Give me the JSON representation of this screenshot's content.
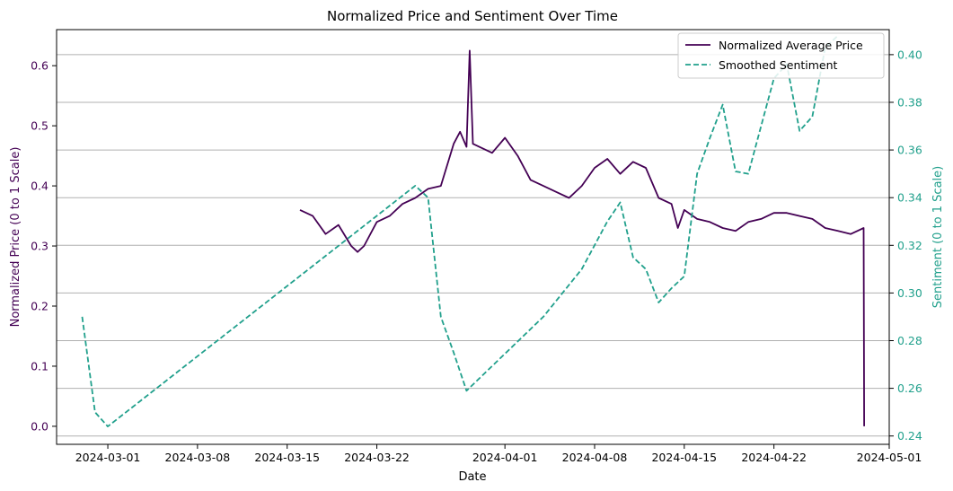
{
  "chart_data": {
    "type": "line",
    "title": "Normalized Price and Sentiment Over Time",
    "xlabel": "Date",
    "ylabel_left": "Normalized Price (0 to 1 Scale)",
    "ylabel_right": "Sentiment (0 to 1 Scale)",
    "x_ticks": [
      "2024-03-01",
      "2024-03-08",
      "2024-03-15",
      "2024-03-22",
      "2024-04-01",
      "2024-04-08",
      "2024-04-15",
      "2024-04-22",
      "2024-05-01"
    ],
    "y_left_ticks": [
      "0.0",
      "0.1",
      "0.2",
      "0.3",
      "0.4",
      "0.5",
      "0.6"
    ],
    "y_right_ticks": [
      "0.24",
      "0.26",
      "0.28",
      "0.30",
      "0.32",
      "0.34",
      "0.36",
      "0.38",
      "0.40"
    ],
    "ylim_left": [
      -0.03,
      0.66
    ],
    "ylim_right": [
      0.2365,
      0.4105
    ],
    "xlim": [
      "2024-02-26",
      "2024-05-01"
    ],
    "grid": "horizontal lines at right-axis ticks",
    "legend_position": "top-right",
    "colors": {
      "price": "#440154",
      "sentiment": "#21a08c",
      "grid": "#b0b0b0"
    },
    "series": [
      {
        "name": "Normalized Average Price",
        "axis": "left",
        "style": "solid",
        "x": [
          "2024-03-16",
          "2024-03-17",
          "2024-03-18",
          "2024-03-19",
          "2024-03-20",
          "2024-03-20T12:00",
          "2024-03-21",
          "2024-03-22",
          "2024-03-23",
          "2024-03-24",
          "2024-03-25",
          "2024-03-26",
          "2024-03-27",
          "2024-03-28",
          "2024-03-28T12:00",
          "2024-03-29",
          "2024-03-29T06:00",
          "2024-03-29T12:00",
          "2024-03-30",
          "2024-03-31",
          "2024-04-01",
          "2024-04-02",
          "2024-04-03",
          "2024-04-04",
          "2024-04-05",
          "2024-04-06",
          "2024-04-07",
          "2024-04-08",
          "2024-04-09",
          "2024-04-10",
          "2024-04-11",
          "2024-04-12",
          "2024-04-13",
          "2024-04-14",
          "2024-04-14T12:00",
          "2024-04-15",
          "2024-04-16",
          "2024-04-17",
          "2024-04-18",
          "2024-04-19",
          "2024-04-20",
          "2024-04-21",
          "2024-04-22",
          "2024-04-23",
          "2024-04-24",
          "2024-04-25",
          "2024-04-26",
          "2024-04-27",
          "2024-04-28",
          "2024-04-29",
          "2024-04-29T01:00"
        ],
        "values": [
          0.36,
          0.35,
          0.32,
          0.335,
          0.3,
          0.29,
          0.3,
          0.34,
          0.35,
          0.37,
          0.38,
          0.395,
          0.4,
          0.47,
          0.49,
          0.465,
          0.625,
          0.47,
          0.465,
          0.455,
          0.48,
          0.45,
          0.41,
          0.4,
          0.39,
          0.38,
          0.4,
          0.43,
          0.445,
          0.42,
          0.44,
          0.43,
          0.38,
          0.37,
          0.33,
          0.36,
          0.345,
          0.34,
          0.33,
          0.325,
          0.34,
          0.345,
          0.355,
          0.355,
          0.35,
          0.345,
          0.33,
          0.325,
          0.32,
          0.33,
          0.0
        ]
      },
      {
        "name": "Smoothed Sentiment",
        "axis": "right",
        "style": "dashed",
        "x": [
          "2024-02-28",
          "2024-02-29",
          "2024-03-01",
          "2024-03-25",
          "2024-03-26",
          "2024-03-27",
          "2024-03-28",
          "2024-03-29",
          "2024-04-04",
          "2024-04-07",
          "2024-04-09",
          "2024-04-10",
          "2024-04-11",
          "2024-04-12",
          "2024-04-13",
          "2024-04-14",
          "2024-04-15",
          "2024-04-16",
          "2024-04-17",
          "2024-04-18",
          "2024-04-19",
          "2024-04-20",
          "2024-04-22",
          "2024-04-23",
          "2024-04-24",
          "2024-04-25",
          "2024-04-26",
          "2024-04-27"
        ],
        "values": [
          0.29,
          0.25,
          0.244,
          0.345,
          0.34,
          0.29,
          0.275,
          0.259,
          0.29,
          0.31,
          0.33,
          0.338,
          0.315,
          0.31,
          0.296,
          0.302,
          0.307,
          0.35,
          0.365,
          0.379,
          0.351,
          0.35,
          0.39,
          0.396,
          0.368,
          0.374,
          0.403,
          0.408
        ]
      }
    ]
  }
}
